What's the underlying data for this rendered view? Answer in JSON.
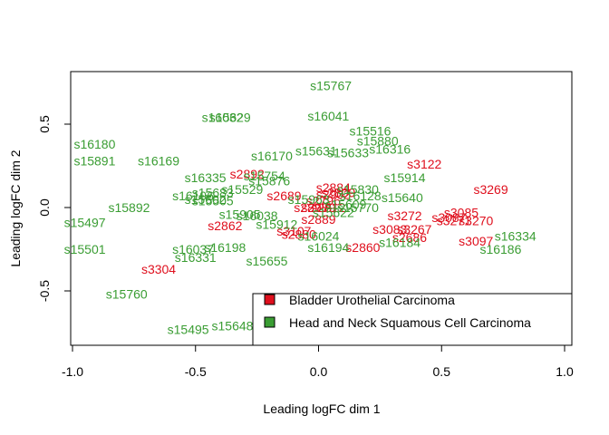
{
  "chart_data": {
    "type": "scatter",
    "title": "",
    "xlabel": "Leading logFC dim 1",
    "ylabel": "Leading logFC dim 2",
    "xlim": [
      -1.0,
      1.0
    ],
    "ylim": [
      -0.75,
      0.75
    ],
    "x_ticks": [
      -1.0,
      -0.5,
      0.0,
      0.5,
      1.0
    ],
    "x_tick_labels": [
      "-1.0",
      "-0.5",
      "0.0",
      "0.5",
      "1.0"
    ],
    "y_ticks": [
      -0.5,
      0.0,
      0.5
    ],
    "y_tick_labels": [
      "-0.5",
      "0.0",
      "0.5"
    ],
    "grid": false,
    "point_style": "text labels",
    "legend_position": "bottom-right",
    "colors": {
      "Bladder Urothelial Carcinoma": "#df0f1d",
      "Head and Neck Squamous Cell Carcinoma": "#3a9d33"
    },
    "series": [
      {
        "name": "Bladder Urothelial Carcinoma",
        "color": "#df0f1d",
        "points": [
          {
            "label": "s3122",
            "x": 0.43,
            "y": 0.26
          },
          {
            "label": "s3269",
            "x": 0.7,
            "y": 0.11
          },
          {
            "label": "s2892",
            "x": -0.29,
            "y": 0.2
          },
          {
            "label": "s2689",
            "x": -0.14,
            "y": 0.07
          },
          {
            "label": "s2884",
            "x": 0.06,
            "y": 0.12
          },
          {
            "label": "s2902",
            "x": 0.06,
            "y": 0.08
          },
          {
            "label": "s2809",
            "x": 0.08,
            "y": 0.09
          },
          {
            "label": "s2862",
            "x": -0.38,
            "y": -0.11
          },
          {
            "label": "s2889",
            "x": 0.0,
            "y": -0.07
          },
          {
            "label": "s3107",
            "x": -0.1,
            "y": -0.14
          },
          {
            "label": "s2880",
            "x": -0.08,
            "y": -0.16
          },
          {
            "label": "s3304",
            "x": -0.65,
            "y": -0.37
          },
          {
            "label": "s2860",
            "x": 0.18,
            "y": -0.24
          },
          {
            "label": "s3272",
            "x": 0.35,
            "y": -0.05
          },
          {
            "label": "s3085",
            "x": 0.58,
            "y": -0.03
          },
          {
            "label": "s3087",
            "x": 0.53,
            "y": -0.06
          },
          {
            "label": "s3270",
            "x": 0.64,
            "y": -0.08
          },
          {
            "label": "s3097",
            "x": 0.64,
            "y": -0.2
          },
          {
            "label": "s2686",
            "x": 0.37,
            "y": -0.18
          },
          {
            "label": "s3083",
            "x": 0.29,
            "y": -0.13
          },
          {
            "label": "s3267",
            "x": 0.39,
            "y": -0.13
          },
          {
            "label": "s3271",
            "x": 0.55,
            "y": -0.08
          },
          {
            "label": "s2796",
            "x": 0.02,
            "y": 0.04
          },
          {
            "label": "s2779",
            "x": 0.0,
            "y": 0.0
          },
          {
            "label": "s2812",
            "x": 0.04,
            "y": 0.0
          },
          {
            "label": "s2898",
            "x": -0.03,
            "y": 0.0
          }
        ]
      },
      {
        "name": "Head and Neck Squamous Cell Carcinoma",
        "color": "#3a9d33",
        "points": [
          {
            "label": "s15767",
            "x": 0.05,
            "y": 0.73
          },
          {
            "label": "s16041",
            "x": 0.04,
            "y": 0.55
          },
          {
            "label": "s15629",
            "x": -0.36,
            "y": 0.54
          },
          {
            "label": "s16032",
            "x": -0.39,
            "y": 0.54
          },
          {
            "label": "s15516",
            "x": 0.21,
            "y": 0.46
          },
          {
            "label": "s15880",
            "x": 0.24,
            "y": 0.4
          },
          {
            "label": "s16316",
            "x": 0.29,
            "y": 0.35
          },
          {
            "label": "s16180",
            "x": -0.91,
            "y": 0.38
          },
          {
            "label": "s15891",
            "x": -0.91,
            "y": 0.28
          },
          {
            "label": "s16169",
            "x": -0.65,
            "y": 0.28
          },
          {
            "label": "s16170",
            "x": -0.19,
            "y": 0.31
          },
          {
            "label": "s15631",
            "x": -0.01,
            "y": 0.34
          },
          {
            "label": "s15633",
            "x": 0.12,
            "y": 0.33
          },
          {
            "label": "s16335",
            "x": -0.46,
            "y": 0.18
          },
          {
            "label": "s15754",
            "x": -0.22,
            "y": 0.19
          },
          {
            "label": "s15876",
            "x": -0.2,
            "y": 0.16
          },
          {
            "label": "s15914",
            "x": 0.35,
            "y": 0.18
          },
          {
            "label": "s15529",
            "x": -0.31,
            "y": 0.11
          },
          {
            "label": "s15683",
            "x": -0.43,
            "y": 0.09
          },
          {
            "label": "s16196",
            "x": -0.51,
            "y": 0.07
          },
          {
            "label": "s15602",
            "x": -0.46,
            "y": 0.05
          },
          {
            "label": "s15905",
            "x": -0.32,
            "y": -0.04
          },
          {
            "label": "s15505",
            "x": -0.43,
            "y": 0.04
          },
          {
            "label": "s15892",
            "x": -0.77,
            "y": 0.0
          },
          {
            "label": "s15497",
            "x": -0.95,
            "y": -0.09
          },
          {
            "label": "s16038",
            "x": -0.25,
            "y": -0.05
          },
          {
            "label": "s15912",
            "x": -0.17,
            "y": -0.1
          },
          {
            "label": "s16024",
            "x": 0.0,
            "y": -0.17
          },
          {
            "label": "s15640",
            "x": 0.34,
            "y": 0.06
          },
          {
            "label": "s16128",
            "x": 0.17,
            "y": 0.07
          },
          {
            "label": "s16184",
            "x": 0.33,
            "y": -0.21
          },
          {
            "label": "s16334",
            "x": 0.8,
            "y": -0.17
          },
          {
            "label": "s16186",
            "x": 0.74,
            "y": -0.25
          },
          {
            "label": "s15501",
            "x": -0.95,
            "y": -0.25
          },
          {
            "label": "s16037",
            "x": -0.51,
            "y": -0.25
          },
          {
            "label": "s16198",
            "x": -0.38,
            "y": -0.24
          },
          {
            "label": "s16331",
            "x": -0.5,
            "y": -0.3
          },
          {
            "label": "s15655",
            "x": -0.21,
            "y": -0.32
          },
          {
            "label": "s16194",
            "x": 0.04,
            "y": -0.24
          },
          {
            "label": "s15760",
            "x": -0.78,
            "y": -0.52
          },
          {
            "label": "s15495",
            "x": -0.53,
            "y": -0.73
          },
          {
            "label": "s15648",
            "x": -0.35,
            "y": -0.71
          },
          {
            "label": "s15963",
            "x": -0.04,
            "y": 0.05
          },
          {
            "label": "s15830",
            "x": 0.16,
            "y": 0.11
          },
          {
            "label": "s15770",
            "x": 0.16,
            "y": 0.0
          },
          {
            "label": "s15622",
            "x": 0.06,
            "y": -0.03
          },
          {
            "label": "s15609",
            "x": 0.11,
            "y": 0.02
          }
        ]
      }
    ]
  }
}
